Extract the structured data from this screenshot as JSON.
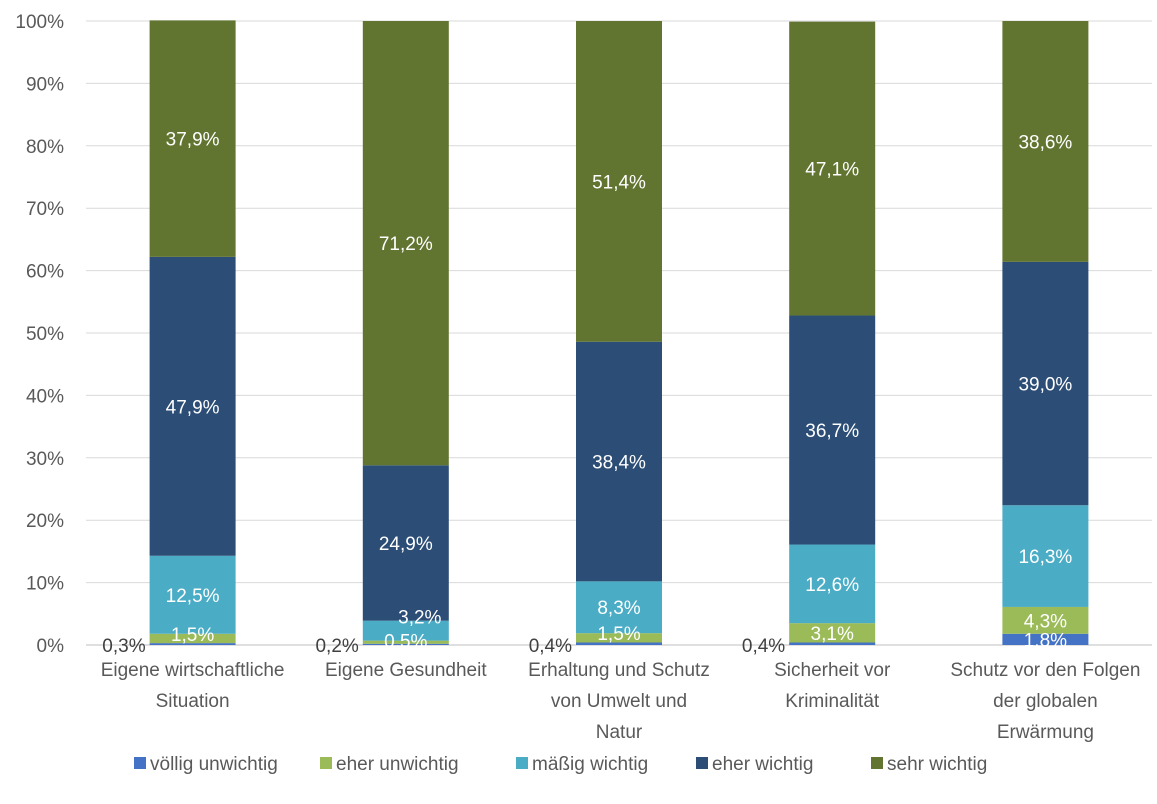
{
  "chart_data": {
    "type": "bar",
    "stacked": true,
    "categories": [
      [
        "Eigene wirtschaftliche",
        "Situation"
      ],
      [
        "Eigene Gesundheit"
      ],
      [
        "Erhaltung und Schutz",
        "von Umwelt und",
        "Natur"
      ],
      [
        "Sicherheit vor",
        "Kriminalität"
      ],
      [
        "Schutz vor den Folgen",
        "der globalen",
        "Erwärmung"
      ]
    ],
    "series": [
      {
        "name": "völlig unwichtig",
        "color": "#4472C4",
        "label_color": "#404040",
        "values": [
          0.3,
          0.2,
          0.4,
          0.4,
          1.8
        ],
        "labels": [
          "0,3%",
          "0,2%",
          "0,4%",
          "0,4%",
          "1,8%"
        ]
      },
      {
        "name": "eher unwichtig",
        "color": "#9BBB59",
        "label_color": "#ffffff",
        "values": [
          1.5,
          0.5,
          1.5,
          3.1,
          4.3
        ],
        "labels": [
          "1,5%",
          "0,5%",
          "1,5%",
          "3,1%",
          "4,3%"
        ]
      },
      {
        "name": "mäßig wichtig",
        "color": "#4BACC6",
        "label_color": "#ffffff",
        "values": [
          12.5,
          3.2,
          8.3,
          12.6,
          16.3
        ],
        "labels": [
          "12,5%",
          "3,2%",
          "8,3%",
          "12,6%",
          "16,3%"
        ]
      },
      {
        "name": "eher wichtig",
        "color": "#2C4D75",
        "label_color": "#ffffff",
        "values": [
          47.9,
          24.9,
          38.4,
          36.7,
          39.0
        ],
        "labels": [
          "47,9%",
          "24,9%",
          "38,4%",
          "36,7%",
          "39,0%"
        ]
      },
      {
        "name": "sehr wichtig",
        "color": "#617430",
        "label_color": "#ffffff",
        "values": [
          37.9,
          71.2,
          51.4,
          47.1,
          38.6
        ],
        "labels": [
          "37,9%",
          "71,2%",
          "51,4%",
          "47,1%",
          "38,6%"
        ]
      }
    ],
    "y_ticks": [
      "0%",
      "10%",
      "20%",
      "30%",
      "40%",
      "50%",
      "60%",
      "70%",
      "80%",
      "90%",
      "100%"
    ],
    "ylim": [
      0,
      100
    ],
    "grid": true,
    "legend_position": "bottom",
    "title": "",
    "xlabel": "",
    "ylabel": ""
  }
}
